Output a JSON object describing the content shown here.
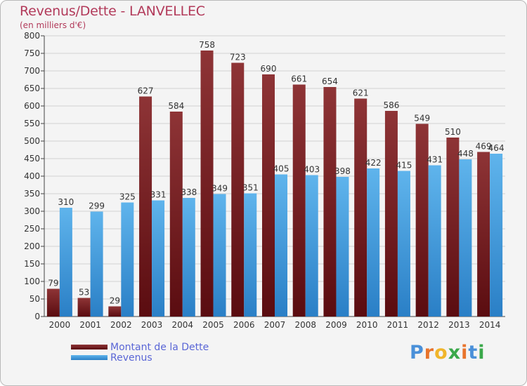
{
  "header": {
    "title": "Revenus/Dette - LANVELLEC",
    "subtitle": "(en milliers d'€)"
  },
  "logo": {
    "text": "Proxiti",
    "colors": [
      "#4a90d9",
      "#e8742c",
      "#f0b52a",
      "#3aa84a",
      "#e8742c",
      "#4a90d9",
      "#3aa84a"
    ]
  },
  "chart_data": {
    "type": "bar",
    "categories": [
      "2000",
      "2001",
      "2002",
      "2003",
      "2004",
      "2005",
      "2006",
      "2007",
      "2008",
      "2009",
      "2010",
      "2011",
      "2012",
      "2013",
      "2014"
    ],
    "series": [
      {
        "name": "Montant de la Dette",
        "color": "#7a1f22",
        "values": [
          79,
          53,
          29,
          627,
          584,
          758,
          723,
          690,
          661,
          654,
          621,
          586,
          549,
          510,
          469
        ]
      },
      {
        "name": "Revenus",
        "color": "#3d9ae0",
        "values": [
          310,
          299,
          325,
          331,
          338,
          349,
          351,
          405,
          403,
          398,
          422,
          415,
          431,
          448,
          464
        ]
      }
    ],
    "ylim": [
      0,
      800
    ],
    "yticks": [
      0,
      50,
      100,
      150,
      200,
      250,
      300,
      350,
      400,
      450,
      500,
      550,
      600,
      650,
      700,
      750,
      800
    ],
    "grid": true,
    "legend": "bottom-left"
  }
}
